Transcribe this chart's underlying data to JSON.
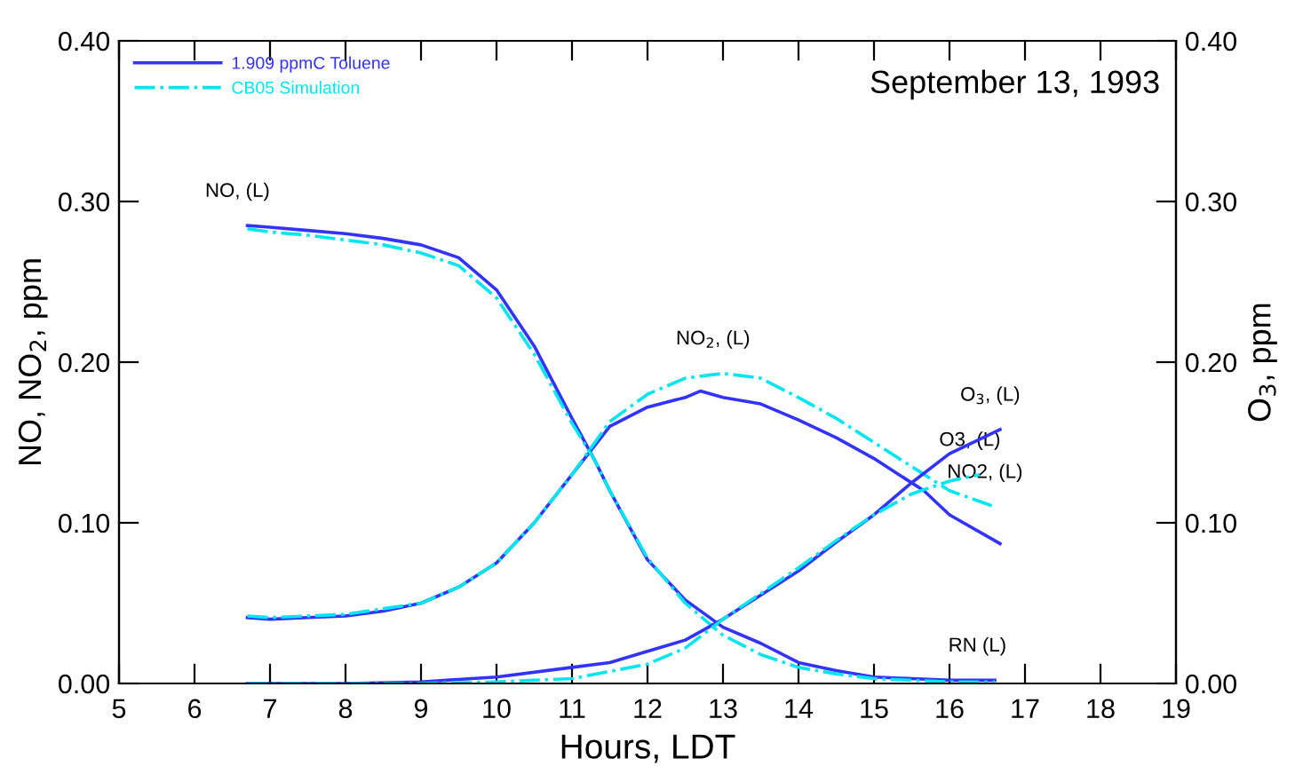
{
  "chart_data": {
    "type": "line",
    "xlabel": "Hours, LDT",
    "ylabel": "NO, NO$_{2}$, ppm",
    "y2label": "O$_{3}$, ppm",
    "xlim": [
      5,
      19
    ],
    "xticks": [
      5,
      6,
      7,
      8,
      9,
      10,
      11,
      12,
      13,
      14,
      15,
      16,
      17,
      18,
      19
    ],
    "ylim": [
      0,
      0.4
    ],
    "yticks": [
      {
        "value": 0,
        "label": "0.00"
      },
      {
        "value": 0.1,
        "label": "0.10"
      },
      {
        "value": 0.2,
        "label": "0.20"
      },
      {
        "value": 0.3,
        "label": "0.30"
      },
      {
        "value": 0.4,
        "label": "0.40"
      }
    ],
    "y2lim": [
      0,
      0.4
    ],
    "y2ticks": [
      {
        "value": 0,
        "label": "0.00"
      },
      {
        "value": 0.1,
        "label": "0.10"
      },
      {
        "value": 0.2,
        "label": "0.20"
      },
      {
        "value": 0.3,
        "label": "0.30"
      },
      {
        "value": 0.4,
        "label": "0.40"
      }
    ],
    "legend": "top left",
    "grid": false,
    "series": [
      {
        "name": "1.909 ppmC Toluene",
        "color": "#3333ff",
        "line_style": "solid",
        "x": [
          6.7,
          7,
          7.5,
          8,
          8.5,
          9,
          9.5,
          10,
          10.5,
          11,
          11.3,
          11.5,
          12,
          12.5,
          13,
          13.5,
          14,
          14.5,
          15,
          15.5,
          16,
          16.6
        ],
        "values": [
          0.285,
          0.284,
          0.282,
          0.28,
          0.277,
          0.273,
          0.265,
          0.245,
          0.21,
          0.165,
          0.139,
          0.12,
          0.077,
          0.052,
          0.035,
          0.025,
          0.013,
          0.008,
          0.004,
          0.003,
          0.002,
          0.002
        ]
      },
      {
        "color": "#3333ff",
        "line_style": "solid",
        "x": [
          6.7,
          7,
          7.5,
          8,
          8.5,
          9,
          9.5,
          10,
          10.5,
          11,
          11.5,
          12,
          12.5,
          12.7,
          13,
          13.5,
          14,
          14.5,
          15,
          15.66,
          16,
          16.67
        ],
        "values": [
          0.041,
          0.04,
          0.041,
          0.042,
          0.045,
          0.05,
          0.06,
          0.075,
          0.1,
          0.13,
          0.16,
          0.172,
          0.178,
          0.182,
          0.178,
          0.174,
          0.164,
          0.153,
          0.14,
          0.12,
          0.105,
          0.087
        ]
      },
      {
        "color": "#3333ff",
        "line_style": "solid",
        "axis": "y2",
        "x": [
          6.7,
          8,
          9,
          10,
          11,
          11.5,
          12,
          12.5,
          13,
          13.5,
          14,
          14.5,
          15,
          15.5,
          16,
          16.67
        ],
        "values": [
          0.0,
          0.0,
          0.001,
          0.004,
          0.01,
          0.013,
          0.02,
          0.027,
          0.04,
          0.055,
          0.07,
          0.088,
          0.105,
          0.125,
          0.143,
          0.158
        ]
      },
      {
        "name": "CB05 Simulation",
        "color": "#00e5ee",
        "line_style": "dashed",
        "x": [
          6.7,
          7,
          7.5,
          8,
          8.5,
          9,
          9.5,
          10,
          10.5,
          11,
          11.3,
          11.5,
          12,
          12.5,
          13,
          13.5,
          14,
          14.5,
          15,
          15.5,
          16,
          16.6
        ],
        "values": [
          0.283,
          0.281,
          0.279,
          0.276,
          0.273,
          0.268,
          0.26,
          0.24,
          0.205,
          0.162,
          0.139,
          0.12,
          0.078,
          0.05,
          0.03,
          0.018,
          0.01,
          0.006,
          0.003,
          0.002,
          0.001,
          0.001
        ]
      },
      {
        "color": "#00e5ee",
        "line_style": "dashed",
        "x": [
          6.7,
          7,
          8,
          9,
          9.5,
          10,
          10.5,
          11,
          11.5,
          12,
          12.5,
          13,
          13.5,
          14,
          14.5,
          15,
          15.5,
          16,
          16.6
        ],
        "values": [
          0.042,
          0.041,
          0.043,
          0.05,
          0.06,
          0.075,
          0.1,
          0.13,
          0.163,
          0.18,
          0.19,
          0.193,
          0.19,
          0.178,
          0.165,
          0.15,
          0.135,
          0.12,
          0.11
        ]
      },
      {
        "color": "#00e5ee",
        "line_style": "dashed",
        "axis": "y2",
        "x": [
          6.7,
          8,
          9,
          10,
          11,
          12,
          12.5,
          13,
          13.5,
          14,
          14.5,
          15,
          15.5,
          16,
          16.4
        ],
        "values": [
          0.0,
          0.0,
          0.0,
          0.001,
          0.003,
          0.012,
          0.022,
          0.04,
          0.056,
          0.072,
          0.089,
          0.105,
          0.118,
          0.126,
          0.13
        ]
      }
    ],
    "annotations": [
      "September 13, 1993",
      {
        "text": "NO, (L)",
        "x": 6.7,
        "y": 0.285
      },
      {
        "text": "NO$_{2}$, (L)",
        "x": 13,
        "y": 0.193
      },
      {
        "text": "O$_{3}$, (L)",
        "x": 16.67,
        "y": 0.158
      },
      {
        "text": "O3, (L)",
        "x": 16.4,
        "y": 0.13
      },
      {
        "text": "NO2, (L)",
        "x": 16.6,
        "y": 0.11
      },
      {
        "text": "RN (L)",
        "x": 16.5,
        "y": 0.002
      }
    ]
  }
}
